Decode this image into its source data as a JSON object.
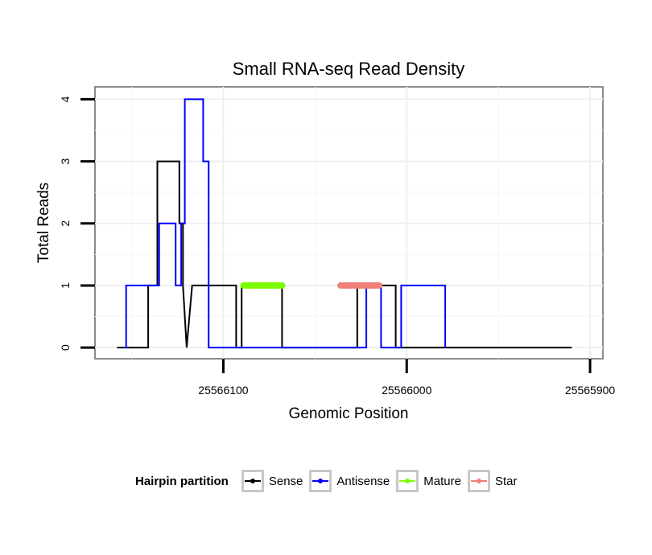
{
  "chart_data": {
    "type": "line",
    "title": "Small RNA-seq Read Density",
    "xlabel": "Genomic Position",
    "ylabel": "Total Reads",
    "x_reversed": true,
    "xlim": [
      25566170,
      25565893
    ],
    "ylim": [
      -0.18,
      4.2
    ],
    "xticks": [
      25566100,
      25566000,
      25565900
    ],
    "xtick_labels": [
      "25566100",
      "25566000",
      "25565900"
    ],
    "yticks": [
      0,
      1,
      2,
      3,
      4
    ],
    "ytick_labels": [
      "0",
      "1",
      "2",
      "3",
      "4"
    ],
    "grid": true,
    "legend_title": "Hairpin partition",
    "legend_position": "bottom",
    "series": [
      {
        "name": "Sense",
        "color": "#000000",
        "x": [
          25566158,
          25566141,
          25566141,
          25566136,
          25566136,
          25566124,
          25566124,
          25566122,
          25566122,
          25566120,
          25566117,
          25566117,
          25566093,
          25566093,
          25566090,
          25566090,
          25566068,
          25566068,
          25566027,
          25566027,
          25566006,
          25566006,
          25565910
        ],
        "y": [
          0,
          0,
          1,
          1,
          3,
          3,
          2,
          2,
          1,
          0,
          1,
          1,
          1,
          0,
          0,
          1,
          1,
          0,
          0,
          1,
          1,
          0,
          0
        ]
      },
      {
        "name": "Antisense",
        "color": "#0000ff",
        "x": [
          25566154,
          25566153,
          25566153,
          25566135,
          25566135,
          25566126,
          25566126,
          25566123,
          25566123,
          25566121,
          25566121,
          25566111,
          25566111,
          25566108,
          25566108,
          25566094,
          25566094,
          25566022,
          25566022,
          25566014,
          25566014,
          25566003,
          25566003,
          25565979,
          25565979
        ],
        "y": [
          0,
          0,
          1,
          1,
          2,
          2,
          1,
          1,
          2,
          2,
          4,
          4,
          3,
          3,
          0,
          0,
          0,
          0,
          1,
          1,
          0,
          0,
          1,
          1,
          0
        ]
      },
      {
        "name": "Mature",
        "color": "#7cfc00",
        "x": [
          25566089,
          25566068
        ],
        "y": [
          1,
          1
        ]
      },
      {
        "name": "Star",
        "color": "#f08078",
        "x": [
          25566036,
          25566015
        ],
        "y": [
          1,
          1
        ]
      }
    ]
  }
}
